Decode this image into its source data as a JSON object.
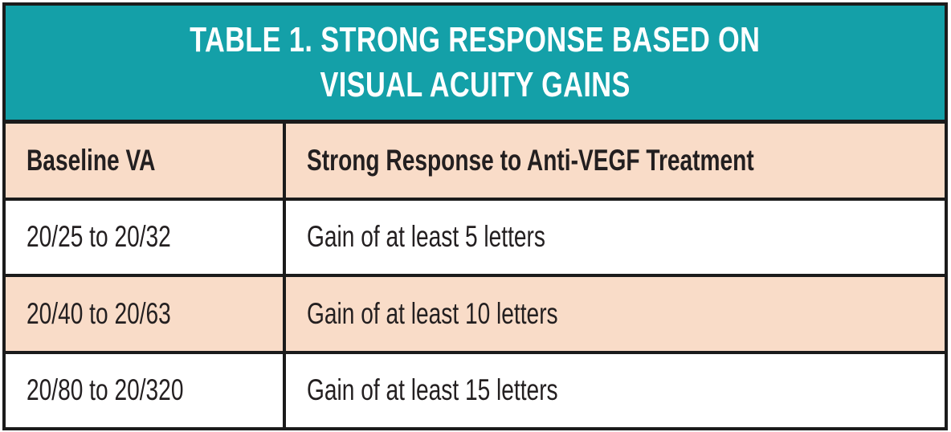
{
  "chart_data": {
    "type": "table",
    "title": "TABLE 1. STRONG RESPONSE BASED ON VISUAL ACUITY GAINS",
    "columns": [
      "Baseline VA",
      "Strong Response to Anti-VEGF Treatment"
    ],
    "rows": [
      [
        "20/25 to 20/32",
        "Gain of at least 5 letters"
      ],
      [
        "20/40 to 20/63",
        "Gain of at least 10 letters"
      ],
      [
        "20/80 to 20/320",
        "Gain of at least 15 letters"
      ]
    ]
  },
  "table": {
    "title_line1": "TABLE 1. STRONG RESPONSE BASED ON",
    "title_line2": "VISUAL ACUITY GAINS",
    "columns": [
      "Baseline VA",
      "Strong Response to Anti-VEGF Treatment"
    ],
    "rows": [
      [
        "20/25 to 20/32",
        "Gain of at least 5 letters"
      ],
      [
        "20/40 to 20/63",
        "Gain of at least 10 letters"
      ],
      [
        "20/80 to 20/320",
        "Gain of at least 15 letters"
      ]
    ],
    "colors": {
      "banner_bg": "#14a0a8",
      "banner_text": "#ffffff",
      "row_alt_bg": "#f9dcc8",
      "row_bg": "#ffffff",
      "border": "#1b1b1b",
      "text": "#231f20"
    }
  }
}
